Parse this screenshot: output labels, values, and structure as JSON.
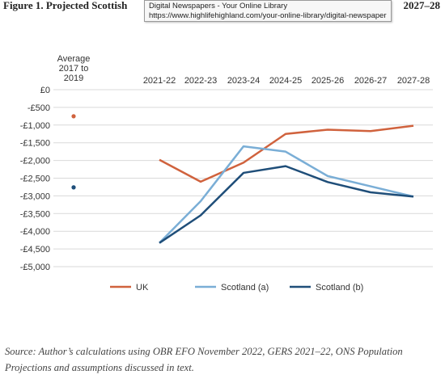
{
  "figure": {
    "title_visible": "Figure 1. Projected Scottish",
    "title_right_visible": "2027–28",
    "source": "Source: Author’s calculations using OBR EFO November 2022, GERS 2021–22, ONS Population Projections and assumptions discussed in text."
  },
  "tooltip": {
    "line1": "Digital Newspapers - Your Online Library",
    "line2": "https://www.highlifehighland.com/your-online-library/digital-newspapers/"
  },
  "colors": {
    "uk": "#d0623d",
    "scotland_a": "#7aaed6",
    "scotland_b": "#1f4e79",
    "grid": "#d9d9d9",
    "axis_text": "#333333"
  },
  "chart_data": {
    "type": "line",
    "categories": [
      "Average 2017 to 2019",
      "2021-22",
      "2022-23",
      "2023-24",
      "2024-25",
      "2025-26",
      "2026-27",
      "2027-28"
    ],
    "category_labels": [
      [
        "Average",
        "2017 to",
        "2019"
      ],
      [
        "2021-22"
      ],
      [
        "2022-23"
      ],
      [
        "2023-24"
      ],
      [
        "2024-25"
      ],
      [
        "2025-26"
      ],
      [
        "2026-27"
      ],
      [
        "2027-28"
      ]
    ],
    "ylim": [
      -5000,
      0
    ],
    "yticks": [
      0,
      -500,
      -1000,
      -1500,
      -2000,
      -2500,
      -3000,
      -3500,
      -4000,
      -4500,
      -5000
    ],
    "ytick_labels": [
      "£0",
      "-£500",
      "-£1,000",
      "-£1,500",
      "-£2,000",
      "-£2,500",
      "-£3,000",
      "-£3,500",
      "-£4,000",
      "-£4,500",
      "-£5,000"
    ],
    "grid": true,
    "legend_position": "bottom",
    "series": [
      {
        "name": "UK",
        "color_key": "uk",
        "values": [
          -750,
          -1980,
          -2600,
          -2060,
          -1250,
          -1130,
          -1170,
          -1020
        ]
      },
      {
        "name": "Scotland (a)",
        "color_key": "scotland_a",
        "values": [
          -2760,
          -4330,
          -3150,
          -1600,
          -1750,
          -2440,
          -2730,
          -3020
        ]
      },
      {
        "name": "Scotland (b)",
        "color_key": "scotland_b",
        "values": [
          -2760,
          -4330,
          -3550,
          -2350,
          -2160,
          -2610,
          -2900,
          -3020
        ]
      }
    ]
  }
}
